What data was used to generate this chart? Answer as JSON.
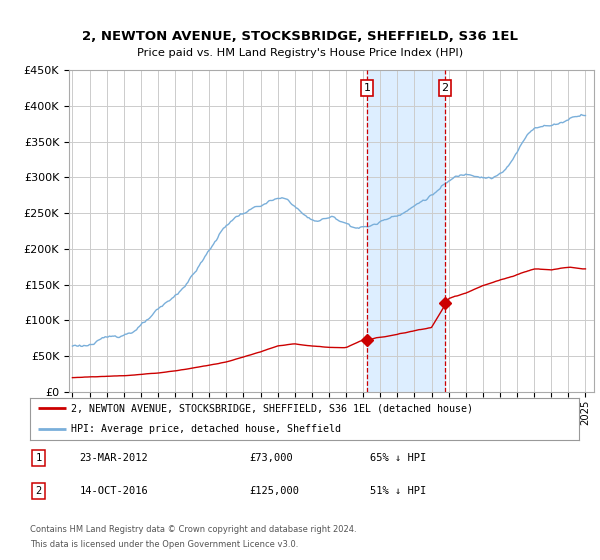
{
  "title": "2, NEWTON AVENUE, STOCKSBRIDGE, SHEFFIELD, S36 1EL",
  "subtitle": "Price paid vs. HM Land Registry's House Price Index (HPI)",
  "legend_line1": "2, NEWTON AVENUE, STOCKSBRIDGE, SHEFFIELD, S36 1EL (detached house)",
  "legend_line2": "HPI: Average price, detached house, Sheffield",
  "footer1": "Contains HM Land Registry data © Crown copyright and database right 2024.",
  "footer2": "This data is licensed under the Open Government Licence v3.0.",
  "sale1_date": "23-MAR-2012",
  "sale1_price": 73000,
  "sale1_label": "£73,000",
  "sale1_pct": "65% ↓ HPI",
  "sale2_date": "14-OCT-2016",
  "sale2_price": 125000,
  "sale2_label": "£125,000",
  "sale2_pct": "51% ↓ HPI",
  "sale1_x": 2012.22,
  "sale2_x": 2016.79,
  "red_color": "#cc0000",
  "blue_color": "#7aafda",
  "shade_color": "#ddeeff",
  "grid_color": "#cccccc",
  "ylim": [
    0,
    450000
  ],
  "xlim": [
    1994.8,
    2025.5
  ],
  "hpi_years": [
    1995,
    1996,
    1997,
    1998,
    1999,
    2000,
    2001,
    2002,
    2003,
    2004,
    2005,
    2006,
    2007,
    2008,
    2009,
    2010,
    2011,
    2012,
    2013,
    2014,
    2015,
    2016,
    2017,
    2018,
    2019,
    2020,
    2021,
    2022,
    2023,
    2024,
    2025
  ],
  "hpi_values": [
    65000,
    68000,
    74000,
    82000,
    95000,
    112000,
    130000,
    160000,
    195000,
    230000,
    248000,
    258000,
    265000,
    255000,
    235000,
    238000,
    232000,
    228000,
    235000,
    248000,
    262000,
    278000,
    295000,
    305000,
    308000,
    312000,
    340000,
    375000,
    380000,
    390000,
    400000
  ],
  "red_years": [
    1995,
    1996,
    1997,
    1998,
    1999,
    2000,
    2001,
    2002,
    2003,
    2004,
    2005,
    2006,
    2007,
    2008,
    2009,
    2010,
    2011,
    2012,
    2012.3,
    2013,
    2014,
    2015,
    2016,
    2016.9,
    2017,
    2018,
    2019,
    2020,
    2021,
    2022,
    2023,
    2024,
    2025
  ],
  "red_values": [
    20000,
    21000,
    22000,
    23000,
    25000,
    27000,
    30000,
    34000,
    38000,
    43000,
    50000,
    57000,
    65000,
    68000,
    65000,
    63000,
    62000,
    73000,
    73000,
    76000,
    80000,
    85000,
    90000,
    125000,
    130000,
    138000,
    148000,
    155000,
    162000,
    170000,
    168000,
    172000,
    170000
  ]
}
